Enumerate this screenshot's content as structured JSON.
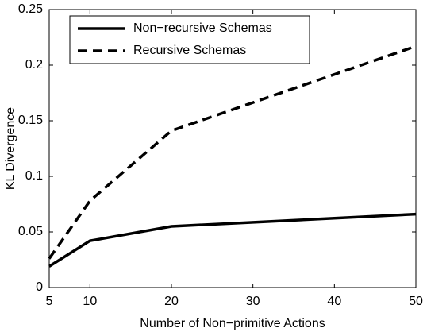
{
  "chart_data": {
    "type": "line",
    "xlabel": "Number of Non−primitive Actions",
    "ylabel": "KL Divergence",
    "x": [
      5,
      10,
      20,
      50
    ],
    "series": [
      {
        "name": "Non−recursive Schemas",
        "color": "#000000",
        "dash": "solid",
        "values": [
          0.019,
          0.042,
          0.055,
          0.066
        ]
      },
      {
        "name": "Recursive Schemas",
        "color": "#000000",
        "dash": "dashed",
        "values": [
          0.026,
          0.078,
          0.141,
          0.217
        ]
      }
    ],
    "xlim": [
      5,
      50
    ],
    "xticks": [
      5,
      10,
      20,
      30,
      40,
      50
    ],
    "ylim": [
      0,
      0.25
    ],
    "yticks": [
      0,
      0.05,
      0.1,
      0.15,
      0.2,
      0.25
    ],
    "legend": "upper left",
    "grid": false
  }
}
